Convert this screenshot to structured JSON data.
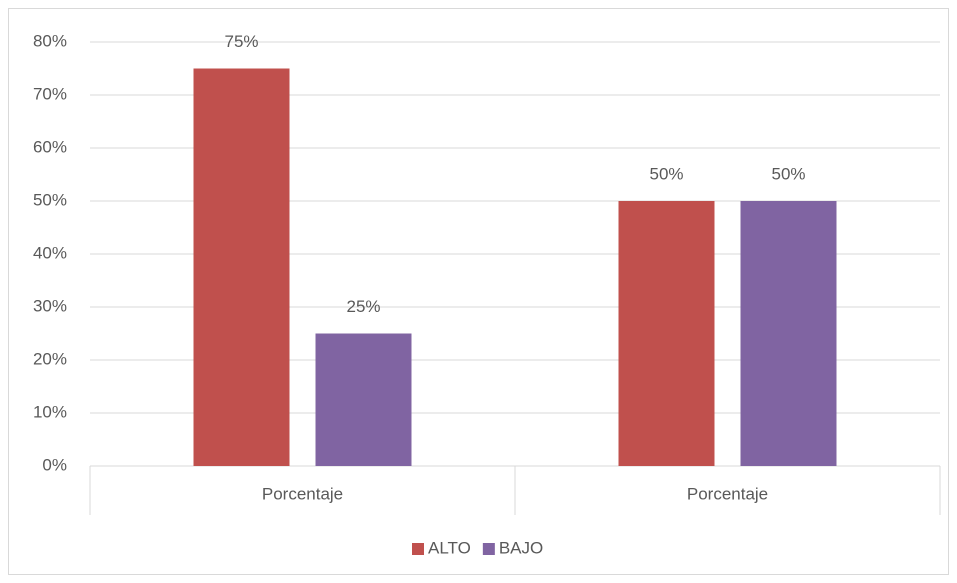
{
  "chart_data": {
    "type": "bar",
    "categories": [
      "Porcentaje",
      "Porcentaje"
    ],
    "series": [
      {
        "name": "ALTO",
        "color": "#c0504d",
        "values": [
          75,
          50
        ],
        "value_labels": [
          "75%",
          "50%"
        ]
      },
      {
        "name": "BAJO",
        "color": "#8064a2",
        "values": [
          25,
          50
        ],
        "value_labels": [
          "25%",
          "50%"
        ]
      }
    ],
    "ylim": [
      0,
      80
    ],
    "yticks": [
      {
        "value": 0,
        "label": "0%"
      },
      {
        "value": 10,
        "label": "10%"
      },
      {
        "value": 20,
        "label": "20%"
      },
      {
        "value": 30,
        "label": "30%"
      },
      {
        "value": 40,
        "label": "40%"
      },
      {
        "value": 50,
        "label": "50%"
      },
      {
        "value": 60,
        "label": "60%"
      },
      {
        "value": 70,
        "label": "70%"
      },
      {
        "value": 80,
        "label": "80%"
      }
    ],
    "grid": true,
    "legend": "bottom"
  }
}
